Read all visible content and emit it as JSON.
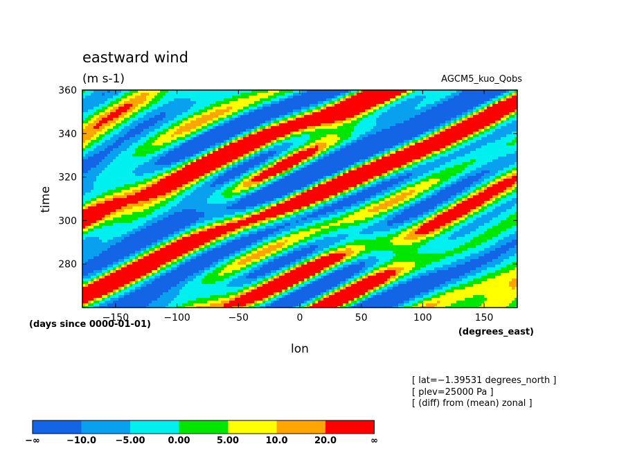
{
  "chart_data": {
    "type": "heatmap",
    "title": "eastward wind",
    "units": "(m s-1)",
    "model_label": "AGCM5_kuo_Qobs",
    "xlabel": "lon",
    "ylabel": "time",
    "x_units": "(degrees_east)",
    "y_units": "(days since 0000-01-01)",
    "xlim": [
      -177,
      177
    ],
    "ylim": [
      260,
      360
    ],
    "x_ticks": [
      -150,
      -100,
      -50,
      0,
      50,
      100,
      150
    ],
    "x_tick_labels": [
      "−150",
      "−100",
      "−50",
      "0",
      "50",
      "100",
      "150"
    ],
    "y_ticks": [
      280,
      300,
      320,
      340,
      360
    ],
    "y_tick_labels": [
      "280",
      "300",
      "320",
      "340",
      "360"
    ],
    "info_lines": [
      "[ lat=−1.39531 degrees_north ]",
      "[ plev=25000 Pa ]",
      "[ (diff) from (mean) zonal ]"
    ],
    "colorbar": {
      "colors": [
        "#1464e6",
        "#0aa0f0",
        "#00f0f0",
        "#00e600",
        "#ffff00",
        "#ffa500",
        "#ff0000"
      ],
      "tick_labels": [
        "−∞",
        "−10.0",
        "−5.00",
        "0.00",
        "5.00",
        "10.0",
        "20.0",
        "∞"
      ]
    }
  }
}
